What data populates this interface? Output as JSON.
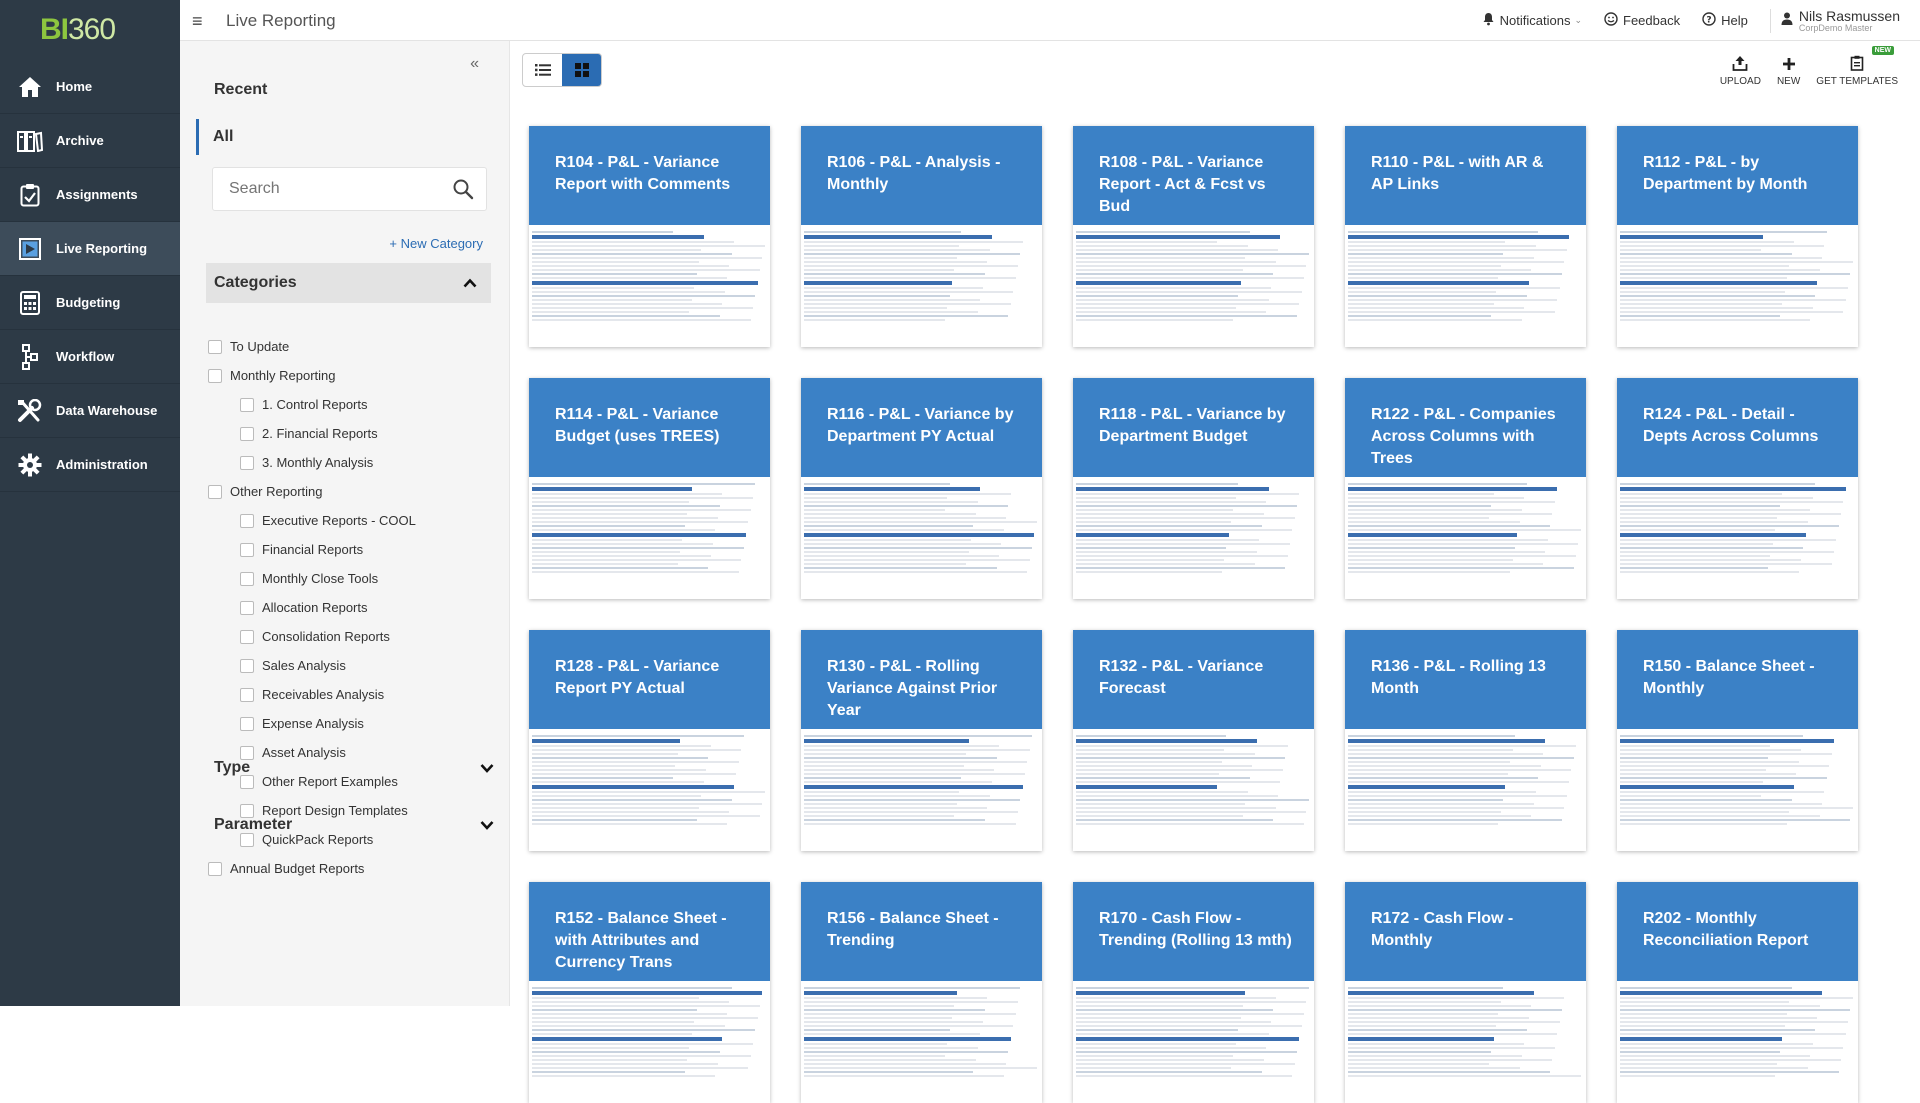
{
  "nav": {
    "logo_main": "BI",
    "logo_num": "360",
    "items": [
      {
        "label": "Home",
        "icon": "home-icon"
      },
      {
        "label": "Archive",
        "icon": "archive-icon"
      },
      {
        "label": "Assignments",
        "icon": "clipboard-icon"
      },
      {
        "label": "Live Reporting",
        "icon": "live-reporting-icon",
        "active": true
      },
      {
        "label": "Budgeting",
        "icon": "calculator-icon"
      },
      {
        "label": "Workflow",
        "icon": "workflow-icon"
      },
      {
        "label": "Data Warehouse",
        "icon": "tools-icon"
      },
      {
        "label": "Administration",
        "icon": "gear-icon"
      }
    ]
  },
  "header": {
    "menu_glyph": "≡",
    "title": "Live Reporting",
    "notifications": "Notifications",
    "feedback": "Feedback",
    "help": "Help",
    "user_name": "Nils Rasmussen",
    "user_company": "CorpDemo Master"
  },
  "sidebar": {
    "collapse_glyph": "«",
    "recent": "Recent",
    "all": "All",
    "search_placeholder": "Search",
    "new_category": "+ New Category",
    "categories_title": "Categories",
    "categories": [
      {
        "label": "To Update",
        "level": 0
      },
      {
        "label": "Monthly Reporting",
        "level": 0
      },
      {
        "label": "1. Control Reports",
        "level": 1
      },
      {
        "label": "2. Financial Reports",
        "level": 1
      },
      {
        "label": "3. Monthly Analysis",
        "level": 1
      },
      {
        "label": "Other Reporting",
        "level": 0
      },
      {
        "label": "Executive Reports - COOL",
        "level": 1
      },
      {
        "label": "Financial Reports",
        "level": 1
      },
      {
        "label": "Monthly Close Tools",
        "level": 1
      },
      {
        "label": "Allocation Reports",
        "level": 1
      },
      {
        "label": "Consolidation Reports",
        "level": 1
      },
      {
        "label": "Sales Analysis",
        "level": 1
      },
      {
        "label": "Receivables Analysis",
        "level": 1
      },
      {
        "label": "Expense Analysis",
        "level": 1
      },
      {
        "label": "Asset Analysis",
        "level": 1
      },
      {
        "label": "Other Report Examples",
        "level": 1
      },
      {
        "label": "Report Design Templates",
        "level": 1
      },
      {
        "label": "QuickPack Reports",
        "level": 1
      },
      {
        "label": "Annual Budget Reports",
        "level": 0
      }
    ],
    "type_title": "Type",
    "parameter_title": "Parameter"
  },
  "toolbar": {
    "upload": "UPLOAD",
    "new": "NEW",
    "get_templates": "GET TEMPLATES",
    "new_badge": "NEW"
  },
  "reports": [
    "R104 - P&L - Variance Report with Comments",
    "R106 - P&L - Analysis - Monthly",
    "R108 - P&L - Variance Report - Act & Fcst vs Bud",
    "R110 - P&L - with AR & AP Links",
    "R112 - P&L - by Department by Month",
    "R114 - P&L - Variance Budget (uses TREES)",
    "R116 - P&L - Variance by Department PY Actual",
    "R118 - P&L - Variance by Department Budget",
    "R122 - P&L - Companies Across Columns with Trees",
    "R124 - P&L - Detail - Depts Across Columns",
    "R128 - P&L - Variance Report PY Actual",
    "R130 - P&L - Rolling Variance Against Prior Year",
    "R132 - P&L - Variance Forecast",
    "R136 - P&L - Rolling 13 Month",
    "R150 - Balance Sheet - Monthly",
    "R152 - Balance Sheet - with Attributes and Currency Trans",
    "R156 - Balance Sheet - Trending",
    "R170 - Cash Flow - Trending (Rolling 13 mth)",
    "R172 - Cash Flow - Monthly",
    "R202 - Monthly Reconciliation Report"
  ]
}
